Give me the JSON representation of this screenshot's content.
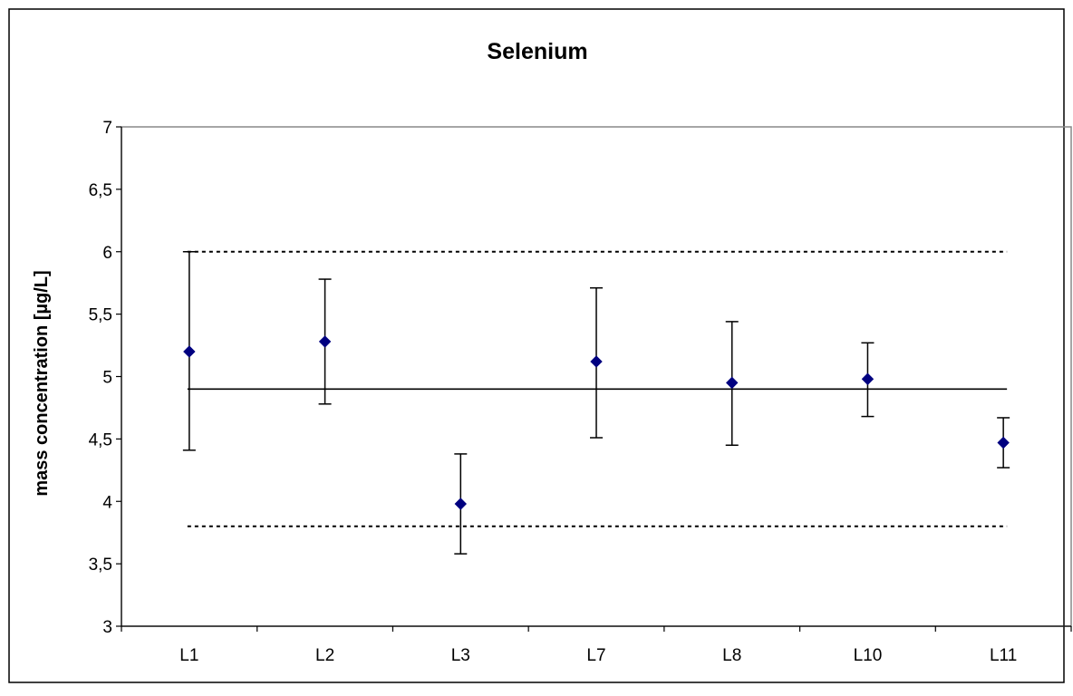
{
  "chart_data": {
    "type": "scatter",
    "title": "Selenium",
    "xlabel": "",
    "ylabel": "mass concentration [µg/L]",
    "categories": [
      "L1",
      "L2",
      "L3",
      "L7",
      "L8",
      "L10",
      "L11"
    ],
    "ylim": [
      3,
      7
    ],
    "yticks": [
      3,
      3.5,
      4,
      4.5,
      5,
      5.5,
      6,
      6.5,
      7
    ],
    "ytick_labels": [
      "3",
      "3,5",
      "4",
      "4,5",
      "5",
      "5,5",
      "6",
      "6,5",
      "7"
    ],
    "grid": false,
    "series": [
      {
        "values": [
          5.2,
          5.28,
          3.98,
          5.12,
          4.95,
          4.98,
          4.47
        ],
        "error_low": [
          4.41,
          4.78,
          3.58,
          4.51,
          4.45,
          4.68,
          4.27
        ],
        "error_high": [
          6.0,
          5.78,
          4.38,
          5.71,
          5.44,
          5.27,
          4.67
        ],
        "color": "#000080",
        "marker": "diamond"
      }
    ],
    "reference_lines": [
      {
        "value": 4.9,
        "style": "solid"
      },
      {
        "value": 6.0,
        "style": "dotted"
      },
      {
        "value": 3.8,
        "style": "dotted"
      }
    ]
  }
}
